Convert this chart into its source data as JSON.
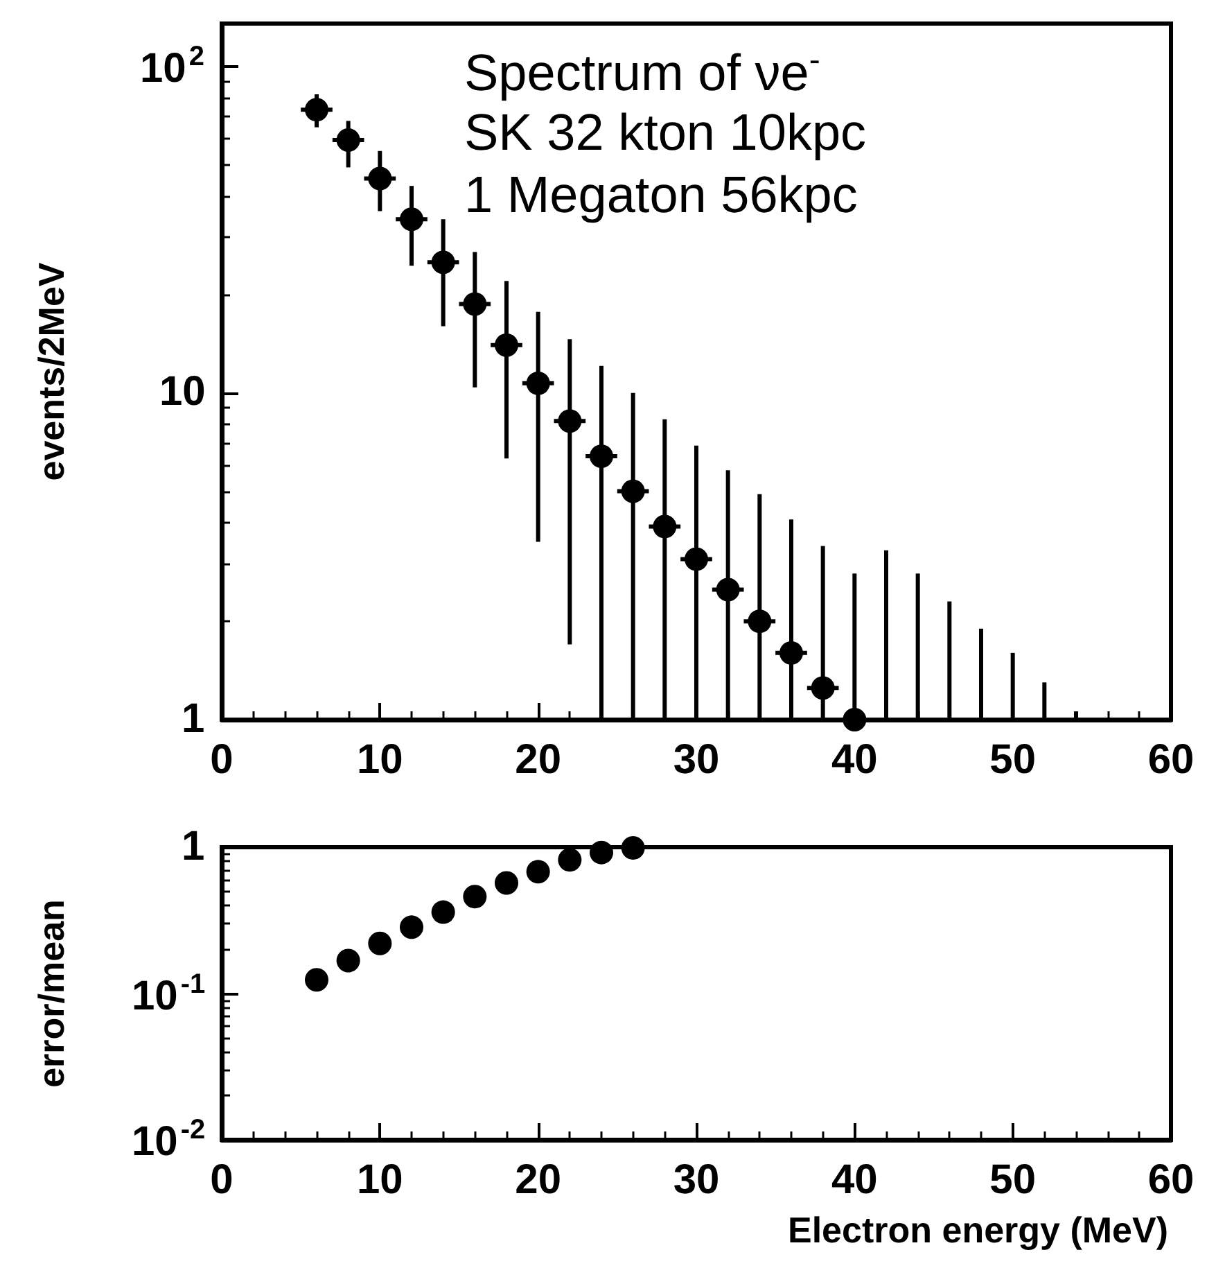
{
  "chart_data": [
    {
      "type": "scatter",
      "ylabel": "events/2MeV",
      "annotations": [
        "Spectrum of νe$^{-}$",
        "SK 32 kton 10kpc",
        "1 Megaton 56kpc"
      ],
      "x": [
        6,
        8,
        10,
        12,
        14,
        16,
        18,
        20,
        22,
        24,
        26,
        28,
        30,
        32,
        34,
        36,
        38,
        40
      ],
      "series": [
        {
          "color": "#000000",
          "values": [
            73.6,
            59.4,
            45.3,
            34.0,
            25.1,
            18.7,
            14.0,
            10.7,
            8.2,
            6.4,
            5.0,
            3.9,
            3.1,
            2.5,
            2.0,
            1.6,
            1.25,
            1.0
          ],
          "errors": [
            [
              65,
              82
            ],
            [
              49,
              68
            ],
            [
              36,
              55
            ],
            [
              24.5,
              43
            ],
            [
              16,
              34
            ],
            [
              10.4,
              27
            ],
            [
              6.3,
              22
            ],
            [
              3.5,
              17.7
            ],
            [
              1.7,
              14.6
            ],
            [
              1,
              12.1
            ],
            [
              1,
              10
            ],
            [
              1,
              8.3
            ],
            [
              1,
              6.9
            ],
            [
              1,
              5.8
            ],
            [
              1,
              4.9
            ],
            [
              1,
              4.1
            ],
            [
              1,
              3.4
            ],
            [
              1,
              2.8
            ]
          ],
          "xerrors": [
            1,
            1,
            1,
            1,
            1,
            1,
            1,
            1,
            1,
            1,
            1,
            1,
            1,
            1,
            1,
            1,
            1,
            1
          ]
        },
        {
          "type": "bar",
          "color": "#000000",
          "x": [
            42,
            44,
            46,
            48,
            50,
            52,
            54
          ],
          "values": [
            3.3,
            2.8,
            2.3,
            1.9,
            1.6,
            1.3,
            1.06
          ]
        }
      ],
      "xlim": [
        0,
        60
      ],
      "xticks": [
        0,
        10,
        20,
        30,
        40,
        50,
        60
      ],
      "ylim": [
        1,
        135
      ],
      "yticks": [
        {
          "value": 1,
          "label": "1"
        },
        {
          "value": 10,
          "label": "10"
        },
        {
          "value": 100,
          "label": "10$^{2}$"
        }
      ],
      "log": "y",
      "grid": false,
      "marker": "circle"
    },
    {
      "type": "scatter",
      "ylabel": "error/mean",
      "xlabel": "Electron energy (MeV)",
      "x": [
        6,
        8,
        10,
        12,
        14,
        16,
        18,
        20,
        22,
        24,
        26
      ],
      "series": [
        {
          "color": "#000000",
          "values": [
            0.124,
            0.168,
            0.22,
            0.284,
            0.36,
            0.46,
            0.57,
            0.68,
            0.82,
            0.92,
            0.99
          ]
        }
      ],
      "xlim": [
        0,
        60
      ],
      "xticks": [
        0,
        10,
        20,
        30,
        40,
        50,
        60
      ],
      "ylim": [
        0.01,
        1
      ],
      "yticks": [
        {
          "value": 1,
          "label": "1"
        },
        {
          "value": 0.1,
          "label": "10$^{-1}$"
        },
        {
          "value": 0.01,
          "label": "10$^{-2}$"
        }
      ],
      "log": "y",
      "grid": false,
      "marker": "circle"
    }
  ]
}
